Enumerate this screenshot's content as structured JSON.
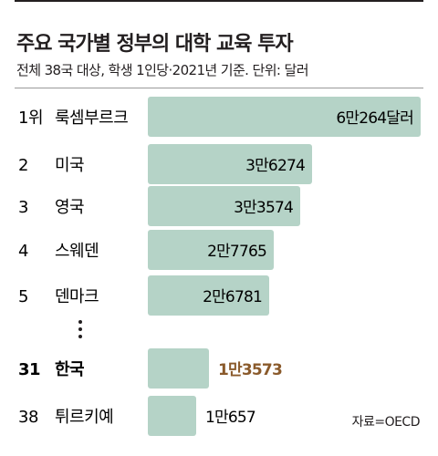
{
  "chart_data": {
    "type": "bar",
    "orientation": "horizontal",
    "title": "주요 국가별 정부의 대학 교육 투자",
    "subtitle": "전체 38국 대상, 학생 1인당·2021년 기준. 단위: 달러",
    "unit": "달러",
    "rows": [
      {
        "rank": "1위",
        "country": "룩셈부르크",
        "value": 60264,
        "label": "6만264달러"
      },
      {
        "rank": "2",
        "country": "미국",
        "value": 36274,
        "label": "3만6274"
      },
      {
        "rank": "3",
        "country": "영국",
        "value": 33574,
        "label": "3만3574"
      },
      {
        "rank": "4",
        "country": "스웨덴",
        "value": 27765,
        "label": "2만7765"
      },
      {
        "rank": "5",
        "country": "덴마크",
        "value": 26781,
        "label": "2만6781"
      },
      {
        "rank": "31",
        "country": "한국",
        "value": 13573,
        "label": "1만3573",
        "highlight": true
      },
      {
        "rank": "38",
        "country": "튀르키예",
        "value": 10657,
        "label": "1만657"
      }
    ],
    "source": "자료=OECD",
    "colors": {
      "bar": "#b5d3c7",
      "highlight_text": "#8a5a2b"
    }
  }
}
